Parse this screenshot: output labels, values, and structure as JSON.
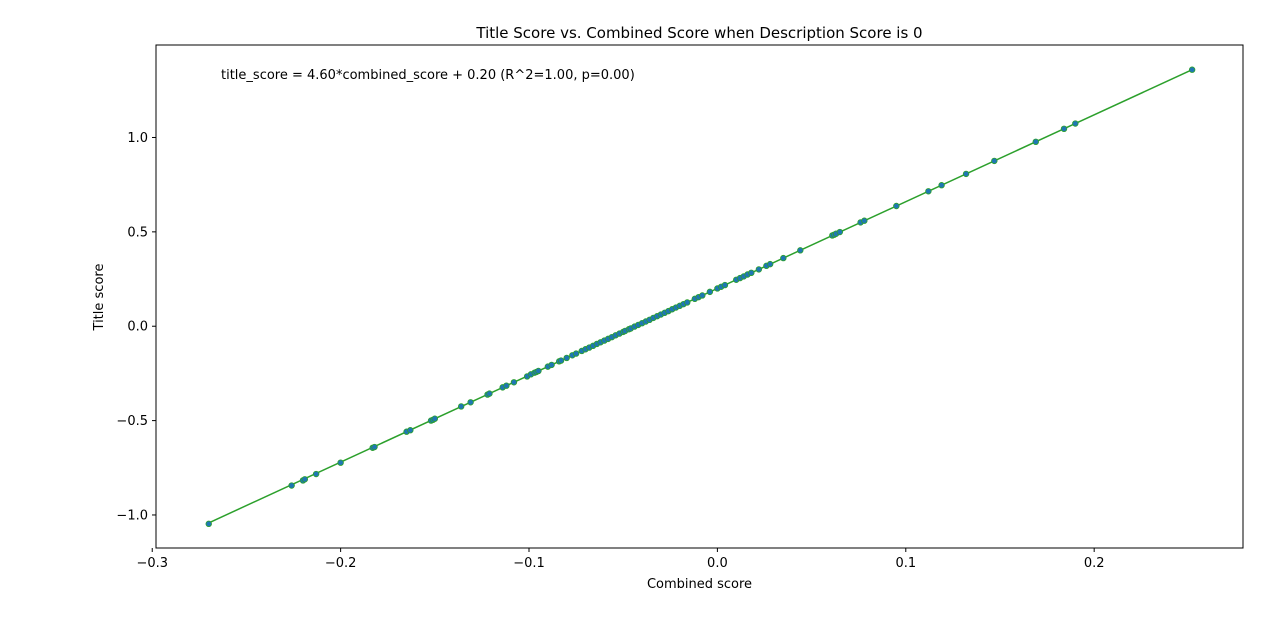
{
  "chart_data": {
    "type": "scatter",
    "title": "Title Score vs. Combined Score when Description Score is 0",
    "xlabel": "Combined score",
    "ylabel": "Title score",
    "annotation": "title_score = 4.60*combined_score + 0.20  (R^2=1.00, p=0.00)",
    "xlim": [
      -0.298,
      0.279
    ],
    "ylim": [
      -1.175,
      1.49
    ],
    "x_ticks": [
      -0.3,
      -0.2,
      -0.1,
      0.0,
      0.1,
      0.2
    ],
    "x_tick_labels": [
      "−0.3",
      "−0.2",
      "−0.1",
      "0.0",
      "0.1",
      "0.2"
    ],
    "y_ticks": [
      -1.0,
      -0.5,
      0.0,
      0.5,
      1.0
    ],
    "y_tick_labels": [
      "−1.0",
      "−0.5",
      "0.0",
      "0.5",
      "1.0"
    ],
    "grid": false,
    "point_color": "#1f77b4",
    "point_overlay_color": "#2ca02c",
    "fit_color": "#2ca02c",
    "fit": {
      "slope": 4.6,
      "intercept": 0.2,
      "x_range": [
        -0.27,
        0.252
      ]
    },
    "series": [
      {
        "x": [
          -0.27,
          -0.226,
          -0.22,
          -0.219,
          -0.213,
          -0.2,
          -0.183,
          -0.182,
          -0.165,
          -0.163,
          -0.152,
          -0.151,
          -0.15,
          -0.136,
          -0.131,
          -0.122,
          -0.121,
          -0.114,
          -0.112,
          -0.108,
          -0.101,
          -0.099,
          -0.097,
          -0.096,
          -0.095,
          -0.09,
          -0.088,
          -0.084,
          -0.083,
          -0.08,
          -0.077,
          -0.075,
          -0.072,
          -0.07,
          -0.068,
          -0.066,
          -0.064,
          -0.062,
          -0.06,
          -0.058,
          -0.056,
          -0.054,
          -0.052,
          -0.05,
          -0.049,
          -0.047,
          -0.046,
          -0.044,
          -0.042,
          -0.04,
          -0.038,
          -0.036,
          -0.034,
          -0.032,
          -0.03,
          -0.028,
          -0.026,
          -0.024,
          -0.022,
          -0.02,
          -0.018,
          -0.016,
          -0.012,
          -0.01,
          -0.008,
          -0.004,
          0.0,
          0.002,
          0.004,
          0.01,
          0.012,
          0.014,
          0.016,
          0.018,
          0.022,
          0.026,
          0.028,
          0.035,
          0.044,
          0.061,
          0.062,
          0.063,
          0.065,
          0.076,
          0.078,
          0.095,
          0.112,
          0.119,
          0.132,
          0.147,
          0.169,
          0.184,
          0.19,
          0.252
        ],
        "y": [
          -1.047,
          -0.844,
          -0.817,
          -0.811,
          -0.783,
          -0.723,
          -0.644,
          -0.64,
          -0.559,
          -0.551,
          -0.5,
          -0.496,
          -0.49,
          -0.425,
          -0.403,
          -0.362,
          -0.357,
          -0.324,
          -0.315,
          -0.297,
          -0.266,
          -0.255,
          -0.246,
          -0.242,
          -0.237,
          -0.214,
          -0.205,
          -0.186,
          -0.182,
          -0.168,
          -0.154,
          -0.145,
          -0.131,
          -0.122,
          -0.113,
          -0.104,
          -0.094,
          -0.085,
          -0.076,
          -0.067,
          -0.058,
          -0.048,
          -0.039,
          -0.03,
          -0.025,
          -0.016,
          -0.012,
          -0.002,
          0.007,
          0.016,
          0.025,
          0.034,
          0.044,
          0.053,
          0.062,
          0.071,
          0.08,
          0.09,
          0.099,
          0.108,
          0.117,
          0.126,
          0.145,
          0.154,
          0.163,
          0.182,
          0.2,
          0.209,
          0.218,
          0.246,
          0.255,
          0.264,
          0.274,
          0.283,
          0.301,
          0.32,
          0.329,
          0.361,
          0.402,
          0.481,
          0.485,
          0.49,
          0.499,
          0.55,
          0.559,
          0.637,
          0.715,
          0.747,
          0.807,
          0.876,
          0.977,
          1.046,
          1.074,
          1.359
        ]
      }
    ]
  }
}
